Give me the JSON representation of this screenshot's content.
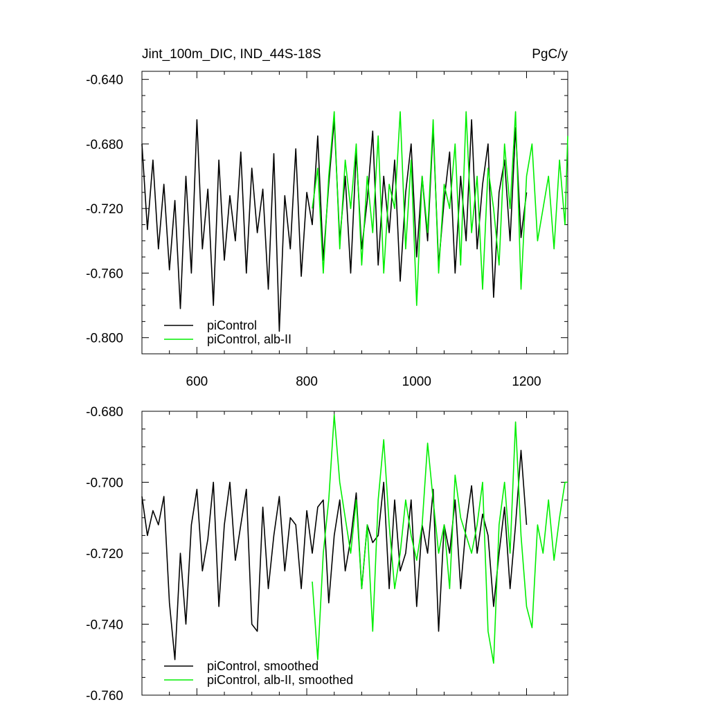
{
  "chart_data": [
    {
      "type": "line",
      "title": "Jint_100m_DIC, IND_44S-18S",
      "right_title": "PgC/y",
      "xlim": [
        500,
        1275
      ],
      "ylim": [
        -0.81,
        -0.635
      ],
      "xticks": [
        600,
        800,
        1000,
        1200
      ],
      "xtick_labels": [
        "600",
        "800",
        "1000",
        "1200"
      ],
      "yticks": [
        -0.64,
        -0.68,
        -0.72,
        -0.76,
        -0.8
      ],
      "ytick_labels": [
        "-0.640",
        "-0.680",
        "-0.720",
        "-0.760",
        "-0.800"
      ],
      "show_x_tick_labels": true,
      "grid": false,
      "legend_position": "bottom-left",
      "series": [
        {
          "name": "piControl",
          "color": "#000000",
          "x": [
            500,
            510,
            520,
            530,
            540,
            550,
            560,
            570,
            580,
            590,
            600,
            610,
            620,
            630,
            640,
            650,
            660,
            670,
            680,
            690,
            700,
            710,
            720,
            730,
            740,
            750,
            760,
            770,
            780,
            790,
            800,
            810,
            820,
            830,
            840,
            850,
            860,
            870,
            880,
            890,
            900,
            910,
            920,
            930,
            940,
            950,
            960,
            970,
            980,
            990,
            1000,
            1010,
            1020,
            1030,
            1040,
            1050,
            1060,
            1070,
            1080,
            1090,
            1100,
            1110,
            1120,
            1130,
            1140,
            1150,
            1160,
            1170,
            1180,
            1190,
            1200
          ],
          "y": [
            -0.68,
            -0.733,
            -0.69,
            -0.745,
            -0.705,
            -0.758,
            -0.715,
            -0.782,
            -0.7,
            -0.76,
            -0.665,
            -0.745,
            -0.708,
            -0.78,
            -0.69,
            -0.752,
            -0.712,
            -0.74,
            -0.685,
            -0.76,
            -0.695,
            -0.735,
            -0.708,
            -0.77,
            -0.686,
            -0.796,
            -0.712,
            -0.745,
            -0.683,
            -0.762,
            -0.71,
            -0.73,
            -0.675,
            -0.752,
            -0.705,
            -0.665,
            -0.74,
            -0.7,
            -0.76,
            -0.685,
            -0.745,
            -0.715,
            -0.672,
            -0.755,
            -0.7,
            -0.735,
            -0.69,
            -0.765,
            -0.71,
            -0.68,
            -0.75,
            -0.7,
            -0.74,
            -0.67,
            -0.755,
            -0.715,
            -0.685,
            -0.76,
            -0.7,
            -0.74,
            -0.665,
            -0.745,
            -0.705,
            -0.68,
            -0.775,
            -0.71,
            -0.69,
            -0.74,
            -0.67,
            -0.738,
            -0.71
          ]
        },
        {
          "name": "piControl, alb-II",
          "color": "#00ee00",
          "x": [
            810,
            820,
            830,
            840,
            850,
            860,
            870,
            880,
            890,
            900,
            910,
            920,
            930,
            940,
            950,
            960,
            970,
            980,
            990,
            1000,
            1010,
            1020,
            1030,
            1040,
            1050,
            1060,
            1070,
            1080,
            1090,
            1100,
            1110,
            1120,
            1130,
            1140,
            1150,
            1160,
            1170,
            1180,
            1190,
            1200,
            1210,
            1220,
            1230,
            1240,
            1250,
            1260,
            1270,
            1275
          ],
          "y": [
            -0.72,
            -0.695,
            -0.76,
            -0.7,
            -0.66,
            -0.745,
            -0.69,
            -0.72,
            -0.68,
            -0.755,
            -0.7,
            -0.735,
            -0.675,
            -0.76,
            -0.705,
            -0.72,
            -0.66,
            -0.745,
            -0.69,
            -0.78,
            -0.7,
            -0.735,
            -0.665,
            -0.76,
            -0.705,
            -0.72,
            -0.68,
            -0.755,
            -0.66,
            -0.735,
            -0.7,
            -0.77,
            -0.695,
            -0.72,
            -0.755,
            -0.68,
            -0.72,
            -0.66,
            -0.77,
            -0.7,
            -0.68,
            -0.74,
            -0.72,
            -0.7,
            -0.745,
            -0.69,
            -0.73,
            -0.675
          ]
        }
      ]
    },
    {
      "type": "line",
      "title": "",
      "xlim": [
        500,
        1275
      ],
      "ylim": [
        -0.76,
        -0.68
      ],
      "xticks": [
        600,
        800,
        1000,
        1200
      ],
      "yticks": [
        -0.68,
        -0.7,
        -0.72,
        -0.74,
        -0.76
      ],
      "ytick_labels": [
        "-0.680",
        "-0.700",
        "-0.720",
        "-0.740",
        "-0.760"
      ],
      "show_x_tick_labels": false,
      "grid": false,
      "legend_position": "bottom-left",
      "series": [
        {
          "name": "piControl, smoothed",
          "color": "#000000",
          "x": [
            500,
            510,
            520,
            530,
            540,
            550,
            560,
            570,
            580,
            590,
            600,
            610,
            620,
            630,
            640,
            650,
            660,
            670,
            680,
            690,
            700,
            710,
            720,
            730,
            740,
            750,
            760,
            770,
            780,
            790,
            800,
            810,
            820,
            830,
            840,
            850,
            860,
            870,
            880,
            890,
            900,
            910,
            920,
            930,
            940,
            950,
            960,
            970,
            980,
            990,
            1000,
            1010,
            1020,
            1030,
            1040,
            1050,
            1060,
            1070,
            1080,
            1090,
            1100,
            1110,
            1120,
            1130,
            1140,
            1150,
            1160,
            1170,
            1180,
            1190,
            1200
          ],
          "y": [
            -0.704,
            -0.715,
            -0.708,
            -0.712,
            -0.704,
            -0.734,
            -0.75,
            -0.72,
            -0.74,
            -0.712,
            -0.702,
            -0.725,
            -0.716,
            -0.7,
            -0.735,
            -0.712,
            -0.7,
            -0.722,
            -0.712,
            -0.702,
            -0.74,
            -0.742,
            -0.707,
            -0.73,
            -0.715,
            -0.704,
            -0.725,
            -0.71,
            -0.712,
            -0.73,
            -0.708,
            -0.72,
            -0.707,
            -0.705,
            -0.734,
            -0.715,
            -0.705,
            -0.725,
            -0.716,
            -0.703,
            -0.73,
            -0.712,
            -0.717,
            -0.715,
            -0.7,
            -0.73,
            -0.705,
            -0.725,
            -0.72,
            -0.705,
            -0.735,
            -0.712,
            -0.72,
            -0.702,
            -0.742,
            -0.712,
            -0.72,
            -0.705,
            -0.73,
            -0.712,
            -0.701,
            -0.72,
            -0.709,
            -0.715,
            -0.735,
            -0.72,
            -0.707,
            -0.73,
            -0.712,
            -0.691,
            -0.712
          ]
        },
        {
          "name": "piControl, alb-II, smoothed",
          "color": "#00ee00",
          "x": [
            810,
            820,
            830,
            840,
            850,
            860,
            870,
            880,
            890,
            900,
            910,
            920,
            930,
            940,
            950,
            960,
            970,
            980,
            990,
            1000,
            1010,
            1020,
            1030,
            1040,
            1050,
            1060,
            1070,
            1080,
            1090,
            1100,
            1110,
            1120,
            1130,
            1140,
            1150,
            1160,
            1170,
            1180,
            1190,
            1200,
            1210,
            1220,
            1230,
            1240,
            1250,
            1260,
            1270,
            1275
          ],
          "y": [
            -0.728,
            -0.75,
            -0.72,
            -0.705,
            -0.681,
            -0.7,
            -0.71,
            -0.72,
            -0.705,
            -0.73,
            -0.712,
            -0.742,
            -0.705,
            -0.688,
            -0.712,
            -0.73,
            -0.72,
            -0.705,
            -0.715,
            -0.722,
            -0.712,
            -0.689,
            -0.705,
            -0.72,
            -0.712,
            -0.73,
            -0.698,
            -0.71,
            -0.715,
            -0.72,
            -0.712,
            -0.7,
            -0.742,
            -0.751,
            -0.712,
            -0.7,
            -0.72,
            -0.683,
            -0.715,
            -0.735,
            -0.741,
            -0.712,
            -0.72,
            -0.705,
            -0.722,
            -0.71,
            -0.7,
            -0.7
          ]
        }
      ]
    }
  ]
}
